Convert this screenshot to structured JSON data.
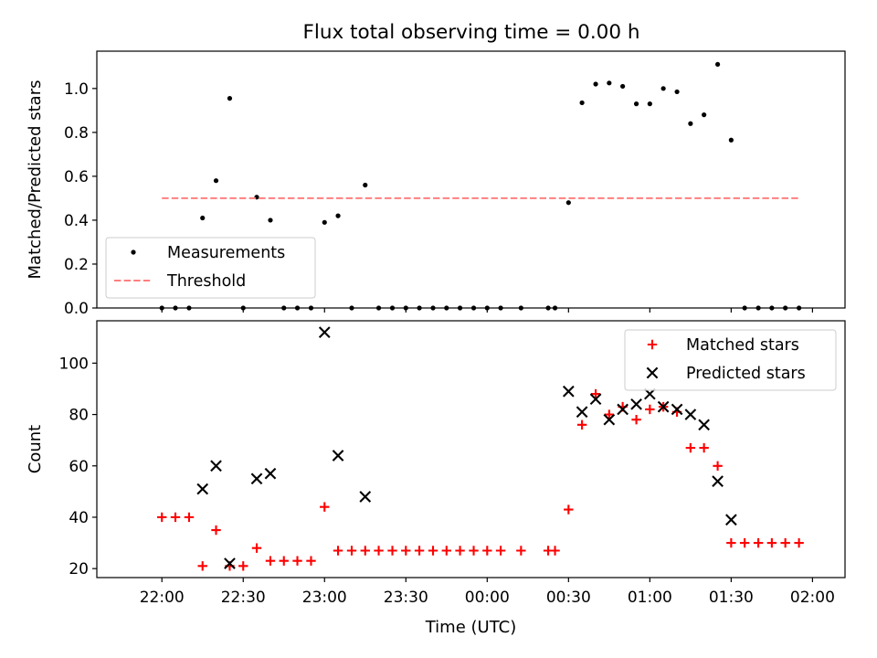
{
  "figure": {
    "title": "Flux total observing time = 0.00 h"
  },
  "chart_data": [
    {
      "type": "scatter",
      "title": "Flux total observing time = 0.00 h",
      "ylabel": "Matched/Predicted stars",
      "xlabel": "",
      "xlim": [
        -0.4,
        4.2
      ],
      "ylim": [
        0,
        1.17
      ],
      "yticks": [
        0.0,
        0.2,
        0.4,
        0.6,
        0.8,
        1.0
      ],
      "ytick_labels": [
        "0.0",
        "0.2",
        "0.4",
        "0.6",
        "0.8",
        "1.0"
      ],
      "xticks": [
        0,
        0.5,
        1,
        1.5,
        2,
        2.5,
        3,
        3.5,
        4
      ],
      "show_xtick_labels": false,
      "legend": {
        "placement": "bottom-left"
      },
      "series": [
        {
          "name": "Measurements",
          "marker": "dot",
          "color": "#000000",
          "x": [
            0.0,
            0.083,
            0.167,
            0.25,
            0.333,
            0.417,
            0.5,
            0.583,
            0.667,
            0.75,
            0.833,
            0.917,
            1.0,
            1.083,
            1.167,
            1.25,
            1.333,
            1.417,
            1.5,
            1.583,
            1.667,
            1.75,
            1.833,
            1.917,
            2.0,
            2.083,
            2.208,
            2.375,
            2.417,
            2.5,
            2.583,
            2.667,
            2.75,
            2.833,
            2.917,
            3.0,
            3.083,
            3.167,
            3.25,
            3.333,
            3.417,
            3.5,
            3.583,
            3.667,
            3.75,
            3.833,
            3.917
          ],
          "y": [
            0.0,
            0.0,
            0.0,
            0.41,
            0.58,
            0.955,
            0.0,
            0.505,
            0.4,
            0.0,
            0.0,
            0.0,
            0.39,
            0.42,
            0.0,
            0.56,
            0.0,
            0.0,
            0.0,
            0.0,
            0.0,
            0.0,
            0.0,
            0.0,
            0.0,
            0.0,
            0.0,
            0.0,
            0.0,
            0.48,
            0.935,
            1.02,
            1.025,
            1.01,
            0.93,
            0.93,
            1.0,
            0.985,
            0.84,
            0.88,
            1.11,
            0.765,
            0.0,
            0.0,
            0.0,
            0.0,
            0.0
          ]
        },
        {
          "name": "Threshold",
          "style": "dashed",
          "color": "#ff7f7f",
          "x": [
            0.0,
            3.917
          ],
          "y": [
            0.5,
            0.5
          ]
        }
      ]
    },
    {
      "type": "scatter",
      "title": "",
      "ylabel": "Count",
      "xlabel": "Time (UTC)",
      "xlim": [
        -0.4,
        4.2
      ],
      "ylim": [
        16.5,
        116.5
      ],
      "yticks": [
        20,
        40,
        60,
        80,
        100
      ],
      "ytick_labels": [
        "20",
        "40",
        "60",
        "80",
        "100"
      ],
      "xticks": [
        0,
        0.5,
        1,
        1.5,
        2,
        2.5,
        3,
        3.5,
        4
      ],
      "xtick_labels": [
        "22:00",
        "22:30",
        "23:00",
        "23:30",
        "00:00",
        "00:30",
        "01:00",
        "01:30",
        "02:00"
      ],
      "legend": {
        "placement": "top-right"
      },
      "series": [
        {
          "name": "Matched stars",
          "marker": "plus",
          "color": "#ff0000",
          "x": [
            0.0,
            0.083,
            0.167,
            0.25,
            0.333,
            0.417,
            0.5,
            0.583,
            0.667,
            0.75,
            0.833,
            0.917,
            1.0,
            1.083,
            1.167,
            1.25,
            1.333,
            1.417,
            1.5,
            1.583,
            1.667,
            1.75,
            1.833,
            1.917,
            2.0,
            2.083,
            2.208,
            2.375,
            2.417,
            2.5,
            2.583,
            2.667,
            2.75,
            2.833,
            2.917,
            3.0,
            3.083,
            3.167,
            3.25,
            3.333,
            3.417,
            3.5,
            3.583,
            3.667,
            3.75,
            3.833,
            3.917
          ],
          "y": [
            40,
            40,
            40,
            21,
            35,
            21,
            21,
            28,
            23,
            23,
            23,
            23,
            44,
            27,
            27,
            27,
            27,
            27,
            27,
            27,
            27,
            27,
            27,
            27,
            27,
            27,
            27,
            27,
            27,
            43,
            76,
            88,
            80,
            83,
            78,
            82,
            83,
            81,
            67,
            67,
            60,
            30,
            30,
            30,
            30,
            30,
            30
          ]
        },
        {
          "name": "Predicted stars",
          "marker": "x",
          "color": "#000000",
          "x": [
            0.25,
            0.333,
            0.417,
            0.583,
            0.667,
            1.0,
            1.083,
            1.25,
            2.5,
            2.583,
            2.667,
            2.75,
            2.833,
            2.917,
            3.0,
            3.083,
            3.167,
            3.25,
            3.333,
            3.417,
            3.5
          ],
          "y": [
            51,
            60,
            22,
            55,
            57,
            112,
            64,
            48,
            89,
            81,
            86,
            78,
            82,
            84,
            88,
            83,
            82,
            80,
            76,
            54,
            39
          ]
        }
      ]
    }
  ]
}
